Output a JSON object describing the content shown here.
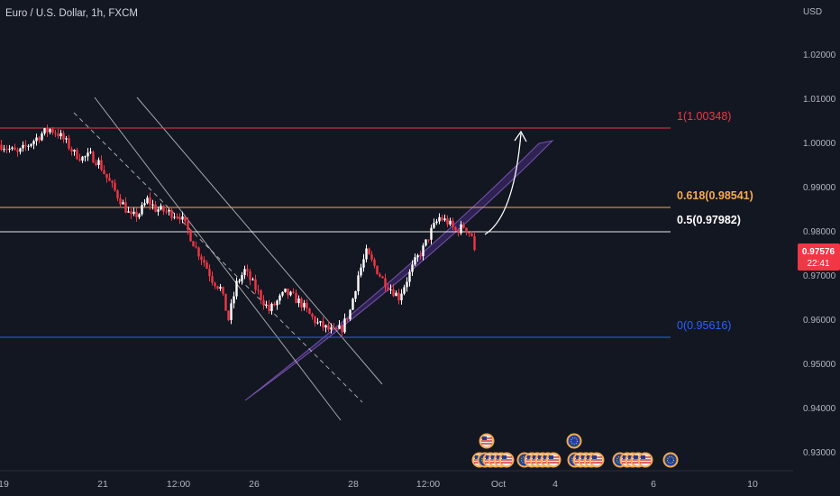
{
  "header": {
    "title": "Euro / U.S. Dollar, 1h, FXCM",
    "currency": "USD"
  },
  "price_badge": {
    "price": "0.97576",
    "countdown": "22:41",
    "color": "#f23645"
  },
  "colors": {
    "background": "#131722",
    "up": "#ffffff",
    "down": "#f23645",
    "fib_1": "#f23645",
    "fib_0618": "#f7a94f",
    "fib_05": "#ffffff",
    "fib_0": "#2962ff",
    "arc_fill": "#673ab7",
    "channel": "#e0e0e0",
    "axis_text": "#b2b5be"
  },
  "fib_levels": [
    {
      "ratio": "1",
      "price": 1.00348,
      "label": "1(1.00348)",
      "color": "#f23645"
    },
    {
      "ratio": "0.618",
      "price": 0.98541,
      "label": "0.618(0.98541)",
      "color": "#f7a94f"
    },
    {
      "ratio": "0.5",
      "price": 0.97982,
      "label": "0.5(0.97982)",
      "color": "#ffffff"
    },
    {
      "ratio": "0",
      "price": 0.95616,
      "label": "0(0.95616)",
      "color": "#2962ff"
    }
  ],
  "events_icons": [
    "us-flag-icon",
    "eu-flag-icon"
  ],
  "chart_data": {
    "type": "candlestick",
    "title": "Euro / U.S. Dollar, 1h, FXCM",
    "y_unit": "USD",
    "ylim": [
      0.925,
      1.033
    ],
    "y_ticks": [
      "1.02000",
      "1.01000",
      "1.00000",
      "0.99000",
      "0.98000",
      "0.97000",
      "0.96000",
      "0.95000",
      "0.94000",
      "0.93000"
    ],
    "x_ticks": [
      "19",
      "21",
      "12:00",
      "26",
      "28",
      "12:00",
      "Oct",
      "4",
      "6",
      "10"
    ],
    "grid": false,
    "close_path": [
      [
        0,
        0.9995
      ],
      [
        3,
        0.9985
      ],
      [
        6,
        0.9975
      ],
      [
        9,
        0.999
      ],
      [
        12,
        1.0005
      ],
      [
        15,
        1.002
      ],
      [
        18,
        1.003
      ],
      [
        21,
        1.002
      ],
      [
        24,
        1.0
      ],
      [
        27,
        0.9975
      ],
      [
        30,
        0.9965
      ],
      [
        33,
        0.997
      ],
      [
        36,
        0.9955
      ],
      [
        39,
        0.992
      ],
      [
        42,
        0.989
      ],
      [
        45,
        0.986
      ],
      [
        48,
        0.983
      ],
      [
        51,
        0.984
      ],
      [
        54,
        0.987
      ],
      [
        57,
        0.985
      ],
      [
        60,
        0.9845
      ],
      [
        63,
        0.984
      ],
      [
        66,
        0.9835
      ],
      [
        69,
        0.98
      ],
      [
        72,
        0.976
      ],
      [
        75,
        0.973
      ],
      [
        78,
        0.969
      ],
      [
        81,
        0.967
      ],
      [
        84,
        0.96
      ],
      [
        87,
        0.968
      ],
      [
        90,
        0.971
      ],
      [
        93,
        0.968
      ],
      [
        96,
        0.965
      ],
      [
        99,
        0.962
      ],
      [
        102,
        0.964
      ],
      [
        105,
        0.966
      ],
      [
        108,
        0.965
      ],
      [
        111,
        0.9635
      ],
      [
        114,
        0.961
      ],
      [
        117,
        0.959
      ],
      [
        120,
        0.958
      ],
      [
        123,
        0.957
      ],
      [
        126,
        0.958
      ],
      [
        129,
        0.962
      ],
      [
        132,
        0.97
      ],
      [
        135,
        0.975
      ],
      [
        138,
        0.972
      ],
      [
        141,
        0.969
      ],
      [
        144,
        0.967
      ],
      [
        147,
        0.965
      ],
      [
        150,
        0.969
      ],
      [
        153,
        0.973
      ],
      [
        156,
        0.976
      ],
      [
        159,
        0.98
      ],
      [
        162,
        0.983
      ],
      [
        165,
        0.982
      ],
      [
        168,
        0.98
      ],
      [
        171,
        0.981
      ],
      [
        174,
        0.979
      ],
      [
        175,
        0.9757
      ]
    ]
  }
}
